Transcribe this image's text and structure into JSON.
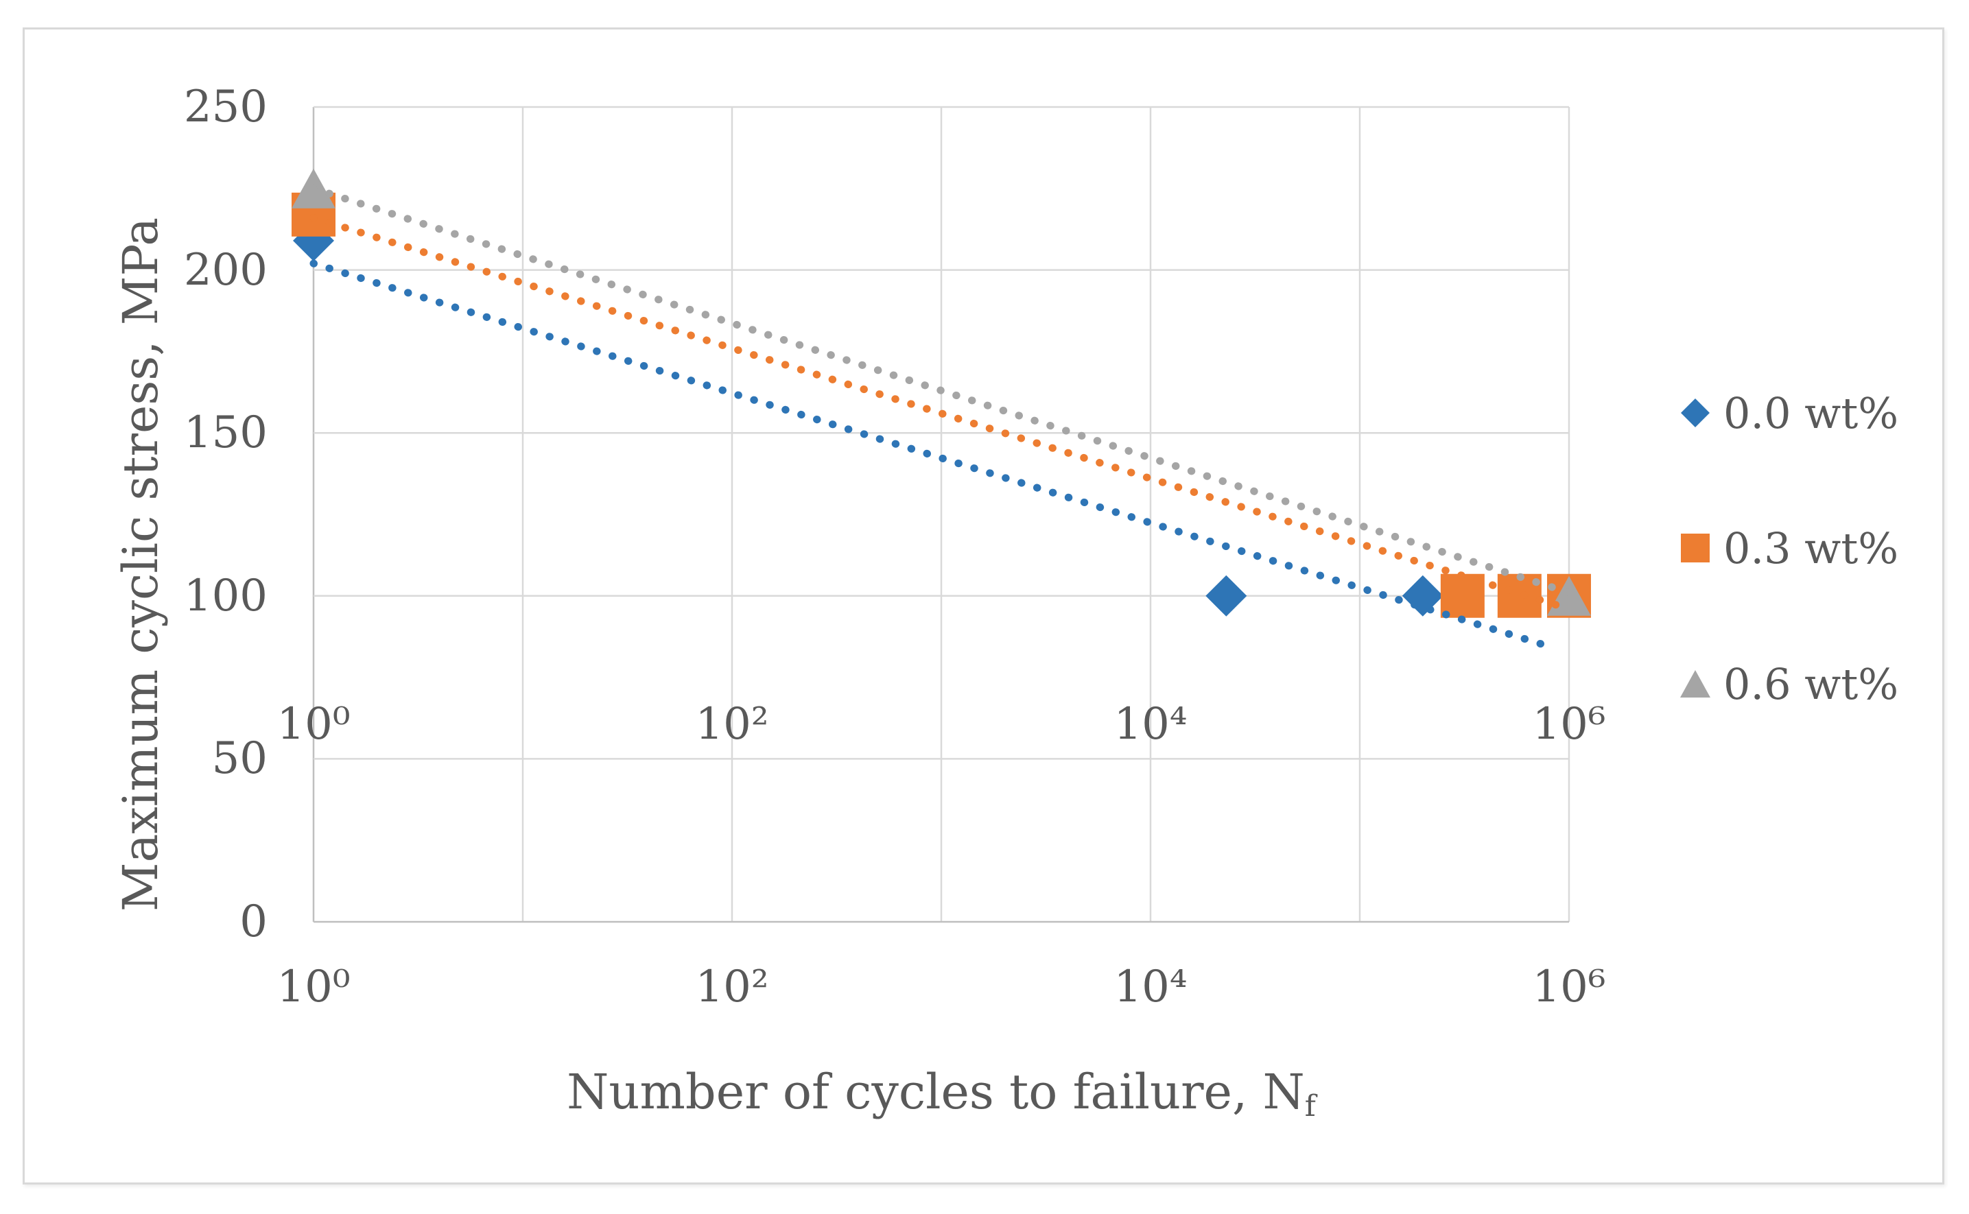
{
  "chart_data": {
    "type": "scatter",
    "x_scale": "log",
    "x_range": [
      1,
      1000000
    ],
    "y_range": [
      0,
      250
    ],
    "grid": true,
    "xlabel": "Number of cycles to failure, N",
    "xlabel_subscript": "f",
    "ylabel": "Maximum cyclic stress, MPa",
    "x_tick_labels": [
      "10⁰",
      "10²",
      "10⁴",
      "10⁶"
    ],
    "x_tick_decades": [
      0,
      2,
      4,
      6
    ],
    "y_tick_labels": [
      "250",
      "200",
      "150",
      "100",
      "50",
      "0"
    ],
    "y_tick_values": [
      0,
      50,
      100,
      150,
      200,
      250
    ],
    "legend_position": "right",
    "series": [
      {
        "name": "0.0 wt%",
        "color": "#2E75B6",
        "marker": "diamond",
        "points": [
          [
            1,
            209
          ],
          [
            23000,
            100
          ],
          [
            200000,
            100
          ]
        ],
        "trendline": {
          "style": "dotted",
          "from": [
            1,
            202
          ],
          "to": [
            850000,
            84
          ]
        }
      },
      {
        "name": "0.3 wt%",
        "color": "#ED7D31",
        "marker": "square",
        "points": [
          [
            1,
            217
          ],
          [
            310000,
            100
          ],
          [
            580000,
            100
          ],
          [
            1000000,
            100
          ]
        ],
        "trendline": {
          "style": "dotted",
          "from": [
            1,
            216
          ],
          "to": [
            1000000,
            96
          ]
        }
      },
      {
        "name": "0.6 wt%",
        "color": "#A5A5A5",
        "marker": "triangle",
        "points": [
          [
            1,
            225
          ],
          [
            1000000,
            100
          ]
        ],
        "trendline": {
          "style": "dotted",
          "from": [
            1,
            225
          ],
          "to": [
            1000000,
            101
          ]
        }
      }
    ],
    "colors": {
      "gridline": "#D9D9D9",
      "axis_line": "#BFBFBF",
      "text": "#595959"
    }
  }
}
